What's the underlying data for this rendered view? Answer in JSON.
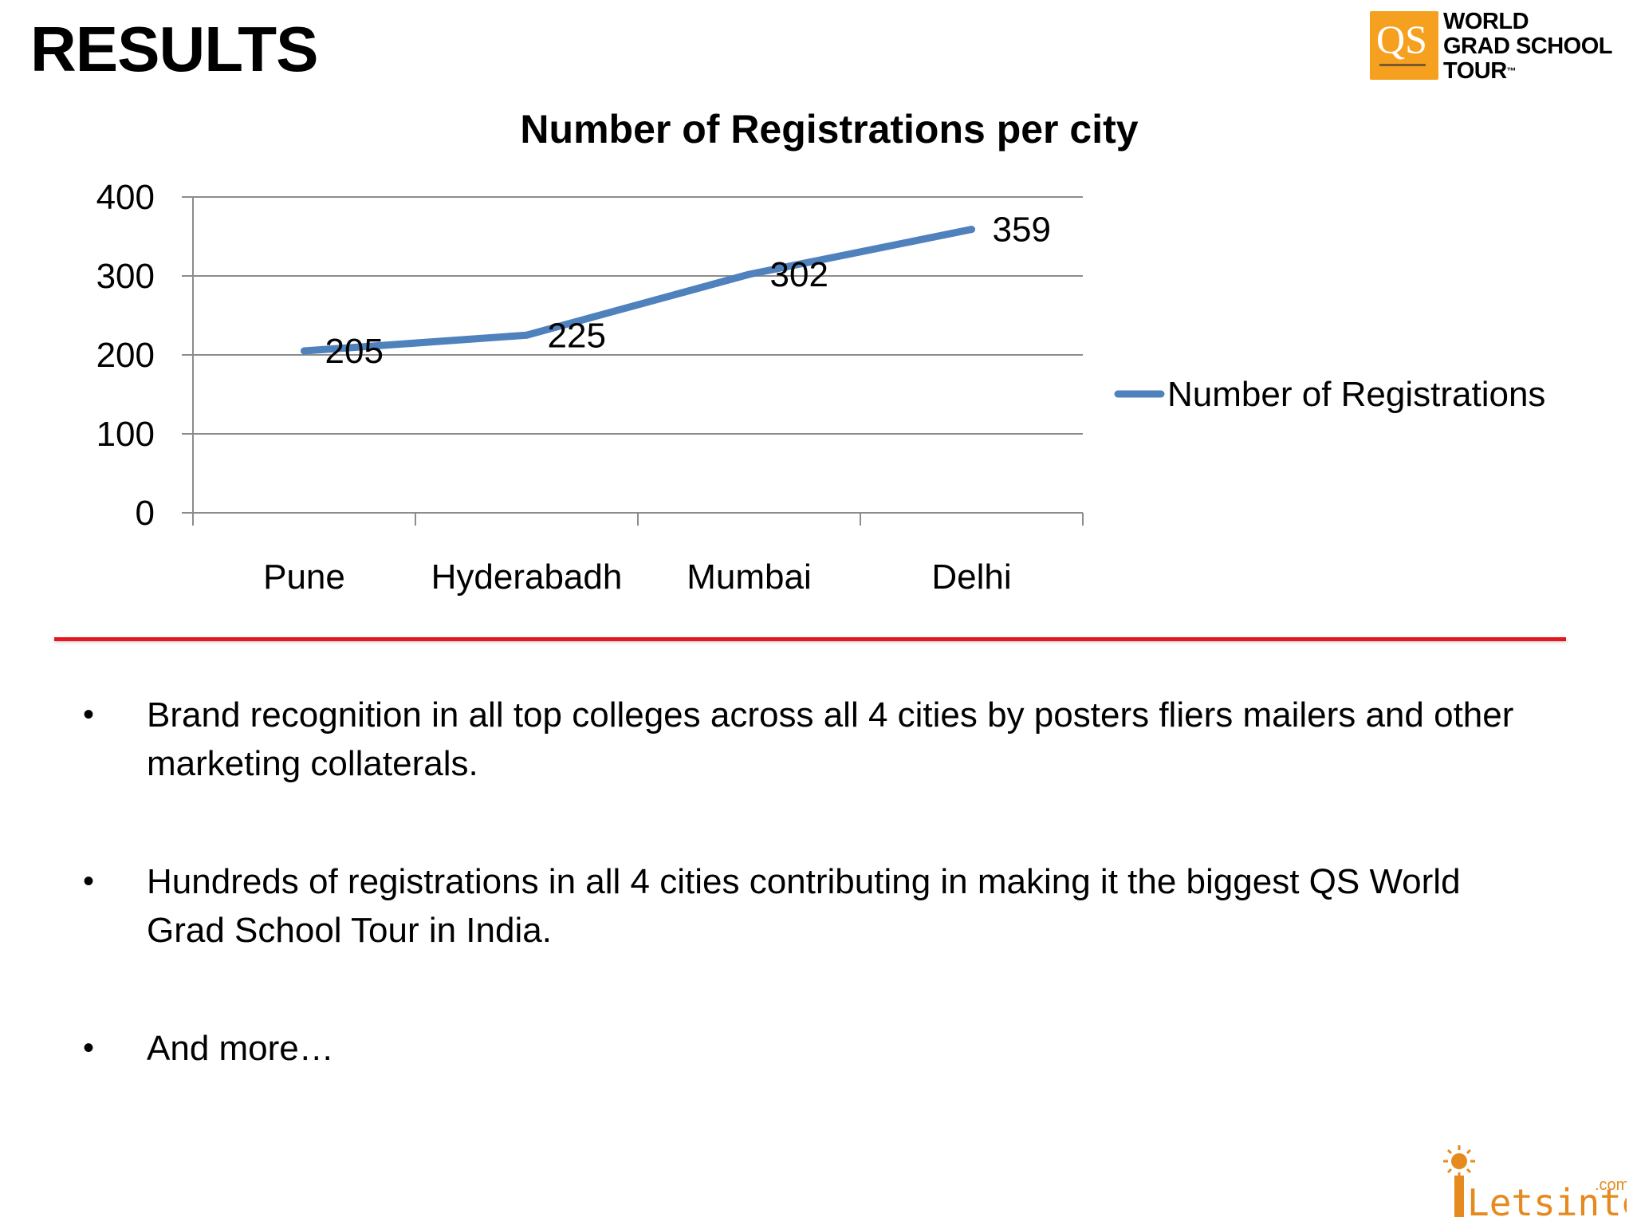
{
  "slide": {
    "title": "RESULTS"
  },
  "logos": {
    "qs_badge_text": "QS",
    "qs_line1": "WORLD",
    "qs_line2": "GRAD SCHOOL",
    "qs_line3": "TOUR",
    "qs_tm": "™",
    "letsintern_text": "Letsintern",
    "letsintern_suffix": ".com"
  },
  "colors": {
    "series": "#4f81bd",
    "divider": "#e3191f",
    "qs_orange": "#f5a01f",
    "letsintern_orange": "#e58a1f"
  },
  "chart_data": {
    "type": "line",
    "title": "Number of Registrations per city",
    "categories": [
      "Pune",
      "Hyderabadh",
      "Mumbai",
      "Delhi"
    ],
    "series": [
      {
        "name": "Number of Registrations",
        "values": [
          205,
          225,
          302,
          359
        ],
        "data_labels": [
          "205",
          "225",
          "302",
          "359"
        ]
      }
    ],
    "ylim": [
      0,
      400
    ],
    "yticks": [
      "0",
      "100",
      "200",
      "300",
      "400"
    ],
    "xlabel": "",
    "ylabel": "",
    "grid": true,
    "legend_position": "right"
  },
  "bullets": [
    {
      "marker": "•",
      "text": "Brand recognition in all top colleges across all 4 cities by posters fliers mailers and other marketing collaterals."
    },
    {
      "marker": "•",
      "text": "Hundreds of registrations in all 4 cities contributing in making it the biggest QS World Grad School Tour in India."
    },
    {
      "marker": "•",
      "text": "And more…"
    }
  ]
}
